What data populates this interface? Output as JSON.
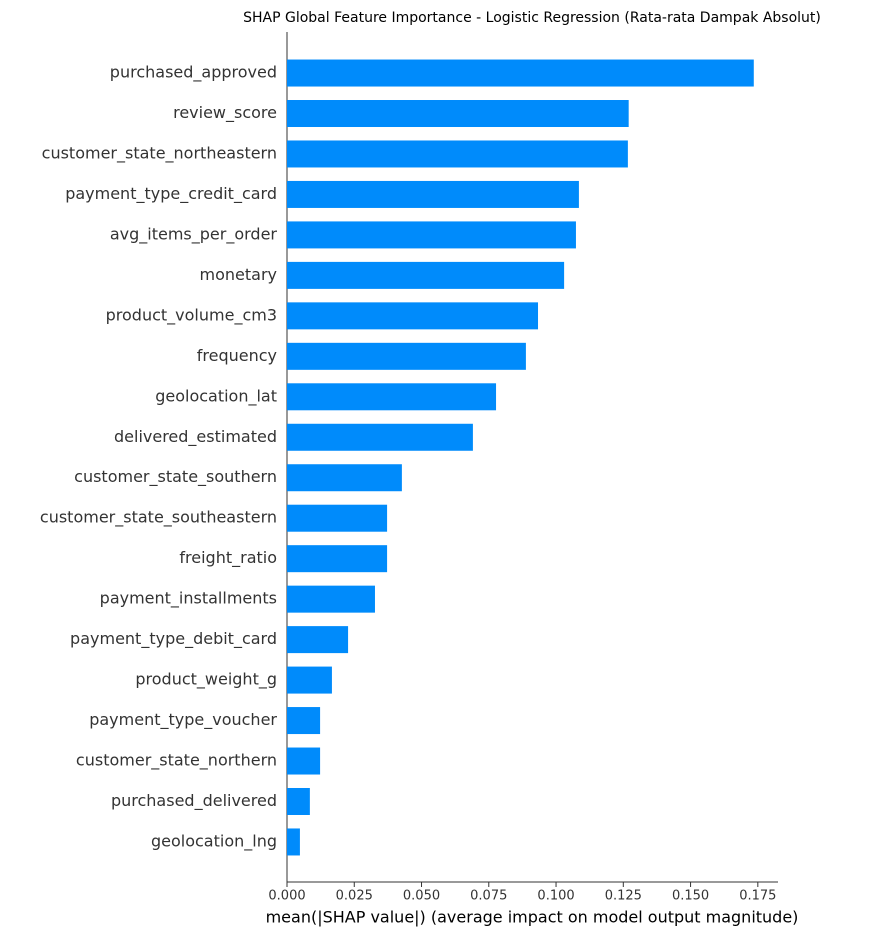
{
  "chart_data": {
    "type": "barh",
    "title": "SHAP Global Feature Importance - Logistic Regression (Rata-rata Dampak Absolut)",
    "x_label": "mean(|SHAP value|) (average impact on model output magnitude)",
    "categories": [
      "purchased_approved",
      "review_score",
      "customer_state_northeastern",
      "payment_type_credit_card",
      "avg_items_per_order",
      "monetary",
      "product_volume_cm3",
      "frequency",
      "geolocation_lat",
      "delivered_estimated",
      "customer_state_southern",
      "customer_state_southeastern",
      "freight_ratio",
      "payment_installments",
      "payment_type_debit_card",
      "product_weight_g",
      "payment_type_voucher",
      "customer_state_northern",
      "purchased_delivered",
      "geolocation_lng"
    ],
    "values": [
      0.1735,
      0.127,
      0.1267,
      0.1085,
      0.1074,
      0.103,
      0.0933,
      0.0888,
      0.0777,
      0.0691,
      0.0427,
      0.0372,
      0.0372,
      0.0327,
      0.0227,
      0.0167,
      0.0123,
      0.0123,
      0.0085,
      0.0048
    ],
    "color": "#008bfb",
    "xlim": [
      0,
      0.1825
    ],
    "xticks": [
      {
        "value": 0,
        "label": "0.000"
      },
      {
        "value": 0.025,
        "label": "0.025"
      },
      {
        "value": 0.05,
        "label": "0.050"
      },
      {
        "value": 0.075,
        "label": "0.075"
      },
      {
        "value": 0.1,
        "label": "0.100"
      },
      {
        "value": 0.125,
        "label": "0.125"
      },
      {
        "value": 0.15,
        "label": "0.150"
      },
      {
        "value": 0.175,
        "label": "0.175"
      }
    ]
  }
}
